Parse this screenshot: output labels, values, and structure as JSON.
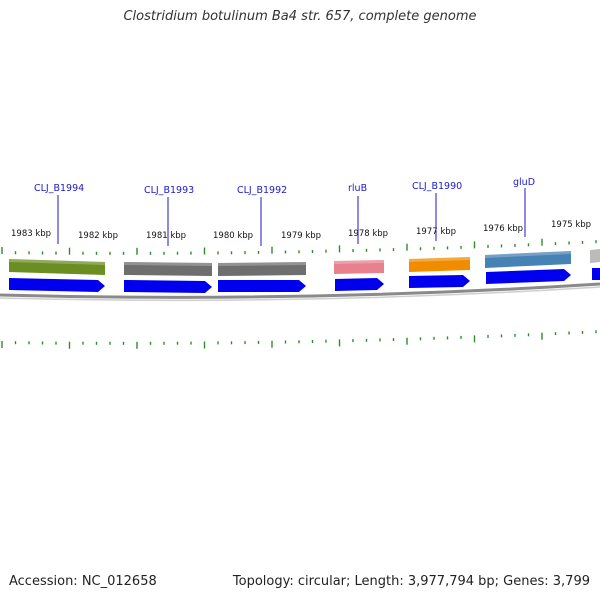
{
  "title": "Clostridium botulinum Ba4 str. 657, complete genome",
  "accession": "Accession: NC_012658",
  "summary": "Topology: circular; Length: 3,977,794 bp; Genes: 3,799",
  "ruler_labels": [
    "1983 kbp",
    "1982 kbp",
    "1981 kbp",
    "1980 kbp",
    "1979 kbp",
    "1978 kbp",
    "1977 kbp",
    "1976 kbp",
    "1975 kbp"
  ],
  "gene_labels": [
    "CLJ_B1994",
    "CLJ_B1993",
    "CLJ_B1992",
    "rluB",
    "CLJ_B1990",
    "gluD"
  ],
  "colors": {
    "backbone": "#8a8a8a",
    "cds": "#0000ee",
    "ticks": "#2e8b2e",
    "gene_label": "#1a1acc",
    "features": [
      "#6b8e23",
      "#6e6e6e",
      "#6e6e6e",
      "#e8808e",
      "#f08c00",
      "#4682b4",
      "#bbbbbb"
    ]
  }
}
